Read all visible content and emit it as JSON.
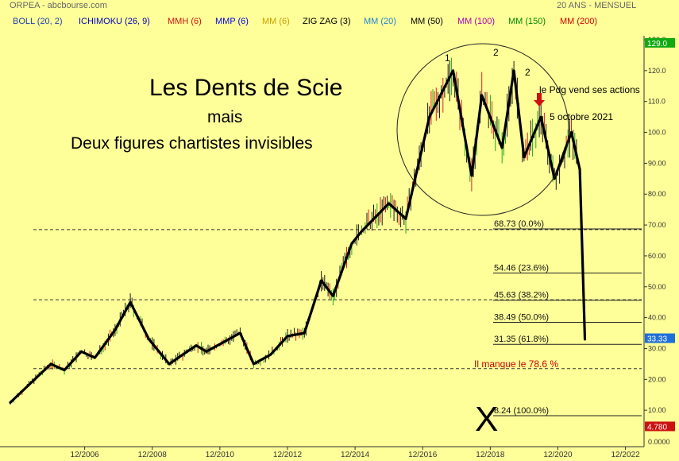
{
  "header": {
    "source": "ORPEA - abcbourse.com",
    "period": "20 ANS - MENSUEL"
  },
  "indicators": [
    {
      "label": "BOLL (20, 2)",
      "color": "#1f3fb0"
    },
    {
      "label": "ICHIMOKU (26, 9)",
      "color": "#0000c0"
    },
    {
      "label": "MMH (6)",
      "color": "#d01010"
    },
    {
      "label": "MMP (6)",
      "color": "#0000e0"
    },
    {
      "label": "MM (6)",
      "color": "#c8a000"
    },
    {
      "label": "ZIG ZAG (3)",
      "color": "#000000"
    },
    {
      "label": "MM (20)",
      "color": "#1e7fd0"
    },
    {
      "label": "MM (50)",
      "color": "#000000"
    },
    {
      "label": "MM (100)",
      "color": "#b000b0"
    },
    {
      "label": "MM (150)",
      "color": "#008800"
    },
    {
      "label": "MM (200)",
      "color": "#d00000"
    }
  ],
  "annotations": {
    "title": "Les Dents de Scie",
    "subtitle1": "mais",
    "subtitle2": "Deux figures chartistes invisibles",
    "peak1": "1",
    "peak2": "2",
    "peak3": "2",
    "pdg_note": "le Pdg vend ses actions",
    "date_note": "5 octobre 2021",
    "missing_note": "Il manque le 78.6 %",
    "x_mark": "X"
  },
  "chart_data": {
    "type": "line",
    "ylim": [
      0,
      130
    ],
    "y_ticks": [
      "10.00",
      "20.00",
      "30.00",
      "40.00",
      "50.00",
      "60.00",
      "70.00",
      "80.00",
      "90.00",
      "100.0",
      "110.0",
      "120.0",
      "130.0"
    ],
    "y_tick_values": [
      10,
      20,
      30,
      40,
      50,
      60,
      70,
      80,
      90,
      100,
      110,
      120,
      130
    ],
    "y_zero_label": "0.0000",
    "x_ticks": [
      "12/2006",
      "12/2008",
      "12/2010",
      "12/2012",
      "12/2014",
      "12/2016",
      "12/2018",
      "12/2020",
      "12/2022"
    ],
    "x_tick_years": [
      2007,
      2009,
      2011,
      2013,
      2015,
      2017,
      2019,
      2021,
      2023
    ],
    "price_tags": [
      {
        "label": "129.0",
        "value": 129.0,
        "color": "#11aa11"
      },
      {
        "label": "33.33",
        "value": 33.33,
        "color": "#1e6fd9"
      },
      {
        "label": "4.780",
        "value": 4.78,
        "color": "#cc1111"
      }
    ],
    "fibonacci": [
      {
        "label": "68.73  (0.0%)",
        "value": 68.73
      },
      {
        "label": "54.46  (23.6%)",
        "value": 54.46
      },
      {
        "label": "45.63  (38.2%)",
        "value": 45.63
      },
      {
        "label": "38.49  (50.0%)",
        "value": 38.49
      },
      {
        "label": "31.35  (61.8%)",
        "value": 31.35
      },
      {
        "label": "8.24  (100.0%)",
        "value": 8.24
      }
    ],
    "dashed_levels": [
      68.5,
      45.8,
      23.5
    ],
    "zigzag": {
      "x": [
        2004.8,
        2006.0,
        2006.4,
        2006.9,
        2007.3,
        2007.9,
        2008.35,
        2008.9,
        2009.5,
        2010.3,
        2010.6,
        2011.6,
        2012.0,
        2012.5,
        2013.0,
        2013.5,
        2014.0,
        2014.35,
        2014.9,
        2015.2,
        2016.0,
        2016.5,
        2017.2,
        2017.9,
        2018.45,
        2018.75,
        2019.35,
        2019.7,
        2020.0,
        2020.5,
        2020.9,
        2021.4,
        2021.65,
        2021.8
      ],
      "y": [
        12.5,
        25,
        23,
        29,
        27,
        36,
        45,
        33,
        25,
        31,
        29,
        35,
        25,
        28,
        34,
        35,
        52,
        47,
        64,
        68,
        77,
        72,
        105,
        120,
        86,
        112,
        95,
        120,
        92,
        105,
        85,
        100,
        88,
        33
      ]
    }
  }
}
